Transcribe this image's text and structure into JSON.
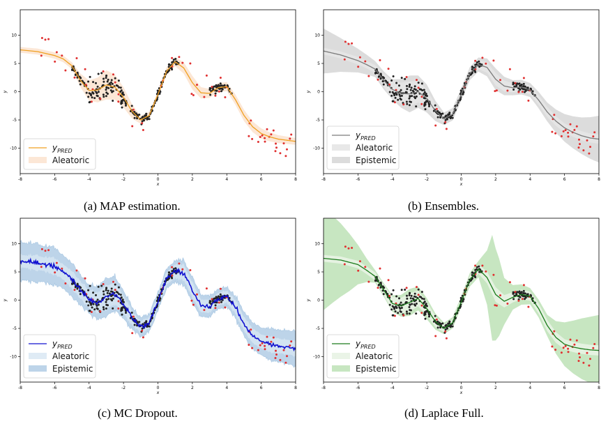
{
  "captions": [
    "(a) MAP estimation.",
    "(b) Ensembles.",
    "(c) MC Dropout.",
    "(d) Laplace Full."
  ],
  "chart_data": [
    {
      "type": "line",
      "title": "",
      "caption": "(a) MAP estimation.",
      "xlabel": "x",
      "ylabel": "y",
      "xlim": [
        -8,
        8
      ],
      "ylim": [
        -14.5,
        14.5
      ],
      "xticks": [
        -8,
        -6,
        -4,
        -2,
        0,
        2,
        4,
        6,
        8
      ],
      "yticks": [
        -10,
        -5,
        0,
        5,
        10
      ],
      "legend": {
        "position": "lower-left",
        "entries": [
          "y_PRED",
          "Aleatoric"
        ],
        "style": [
          "line",
          "band"
        ]
      },
      "colors": {
        "mean": "#f0a020",
        "aleatoric": "#fbe3cf",
        "aleatoric_alpha": 0.85,
        "epistemic": ""
      },
      "series": [
        {
          "name": "y_PRED",
          "x": [
            -8,
            -7,
            -6,
            -5.5,
            -5,
            -4.5,
            -4,
            -3.5,
            -3,
            -2.5,
            -2,
            -1.5,
            -1,
            -0.5,
            0,
            0.5,
            1,
            1.5,
            2,
            2.5,
            3,
            3.5,
            4,
            4.5,
            5,
            5.5,
            6,
            6.5,
            7,
            7.5,
            8
          ],
          "y": [
            7.4,
            7.1,
            6.4,
            5.8,
            4.6,
            2.0,
            0.2,
            0.3,
            1.2,
            0.8,
            -1.0,
            -3.5,
            -5.0,
            -4.2,
            -0.5,
            3.6,
            5.3,
            4.2,
            1.6,
            -0.2,
            -0.3,
            0.7,
            0.9,
            -1.4,
            -4.2,
            -6.2,
            -7.4,
            -8.0,
            -8.4,
            -8.6,
            -8.8
          ]
        }
      ],
      "aleatoric_halfwidth": {
        "x": [
          -8,
          -5,
          -4,
          -3,
          -2,
          -1,
          0,
          1,
          2,
          3,
          4,
          5,
          6,
          7,
          8
        ],
        "w": [
          0.5,
          0.6,
          1.8,
          2.6,
          1.8,
          0.7,
          0.6,
          0.8,
          1.2,
          0.8,
          0.8,
          1.0,
          0.9,
          0.7,
          0.6
        ]
      }
    },
    {
      "type": "line",
      "title": "",
      "caption": "(b) Ensembles.",
      "xlabel": "x",
      "ylabel": "y",
      "xlim": [
        -8,
        8
      ],
      "ylim": [
        -14.5,
        14.5
      ],
      "xticks": [
        -8,
        -6,
        -4,
        -2,
        0,
        2,
        4,
        6,
        8
      ],
      "yticks": [
        -10,
        -5,
        0,
        5,
        10
      ],
      "legend": {
        "position": "lower-left",
        "entries": [
          "y_PRED",
          "Aleatoric",
          "Epistemic"
        ],
        "style": [
          "line",
          "band",
          "band"
        ]
      },
      "colors": {
        "mean": "#7a7a7a",
        "aleatoric": "#e6e6e6",
        "aleatoric_alpha": 0.9,
        "epistemic": "#c9c9c9",
        "epistemic_alpha": 0.65
      },
      "series": [
        {
          "name": "y_PRED",
          "x": [
            -8,
            -7,
            -6,
            -5.5,
            -5,
            -4.5,
            -4,
            -3.5,
            -3,
            -2.5,
            -2,
            -1.5,
            -1,
            -0.5,
            0,
            0.5,
            1,
            1.5,
            2,
            2.5,
            3,
            3.5,
            4,
            4.5,
            5,
            5.5,
            6,
            6.5,
            7,
            7.5,
            8
          ],
          "y": [
            7.2,
            6.5,
            5.5,
            4.8,
            4.0,
            2.0,
            0.4,
            -0.3,
            -0.4,
            0.0,
            -1.2,
            -3.4,
            -4.8,
            -4.0,
            -0.5,
            3.2,
            4.8,
            4.3,
            2.2,
            1.0,
            0.7,
            0.8,
            0.3,
            -1.5,
            -3.6,
            -5.2,
            -6.4,
            -7.2,
            -7.8,
            -8.2,
            -8.4
          ]
        }
      ],
      "aleatoric_halfwidth": {
        "x": [
          -8,
          -5,
          -4,
          -3,
          -2,
          -1,
          0,
          1,
          2,
          3,
          4,
          5,
          6,
          7,
          8
        ],
        "w": [
          0.6,
          0.7,
          1.6,
          2.2,
          1.6,
          0.7,
          0.6,
          0.8,
          1.1,
          0.8,
          0.8,
          0.9,
          0.8,
          0.8,
          0.8
        ]
      },
      "epistemic_halfwidth": {
        "x": [
          -8,
          -7,
          -6,
          -5,
          -4,
          -3,
          -2,
          -1,
          0,
          1,
          2,
          3,
          4,
          5,
          6,
          7,
          8
        ],
        "w": [
          3.8,
          2.8,
          1.9,
          1.2,
          1.3,
          2.6,
          2.0,
          0.9,
          0.9,
          1.0,
          1.6,
          1.1,
          1.0,
          1.4,
          2.2,
          3.0,
          3.9
        ]
      }
    },
    {
      "type": "line",
      "title": "",
      "caption": "(c) MC Dropout.",
      "xlabel": "x",
      "ylabel": "y",
      "xlim": [
        -8,
        8
      ],
      "ylim": [
        -14.5,
        14.5
      ],
      "xticks": [
        -8,
        -6,
        -4,
        -2,
        0,
        2,
        4,
        6,
        8
      ],
      "yticks": [
        -10,
        -5,
        0,
        5,
        10
      ],
      "legend": {
        "position": "lower-left",
        "entries": [
          "y_PRED",
          "Aleatoric",
          "Epistemic"
        ],
        "style": [
          "line",
          "band",
          "band"
        ]
      },
      "noisy": true,
      "colors": {
        "mean": "#1010d0",
        "aleatoric": "#d7e6f3",
        "aleatoric_alpha": 0.8,
        "epistemic": "#a7c6e2",
        "epistemic_alpha": 0.75
      },
      "series": [
        {
          "name": "y_PRED",
          "x": [
            -8,
            -7,
            -6,
            -5.5,
            -5,
            -4.5,
            -4,
            -3.5,
            -3,
            -2.5,
            -2,
            -1.5,
            -1,
            -0.5,
            0,
            0.5,
            1,
            1.5,
            2,
            2.5,
            3,
            3.5,
            4,
            4.5,
            5,
            5.5,
            6,
            6.5,
            7,
            7.5,
            8
          ],
          "y": [
            6.9,
            6.6,
            6.0,
            5.0,
            3.6,
            1.8,
            0.2,
            -0.5,
            0.5,
            1.2,
            -0.8,
            -3.2,
            -4.8,
            -4.0,
            -0.2,
            3.8,
            5.1,
            4.9,
            1.8,
            -1.0,
            -1.1,
            0.2,
            0.6,
            -1.2,
            -4.2,
            -6.3,
            -7.3,
            -7.8,
            -8.1,
            -8.3,
            -8.6
          ]
        }
      ],
      "aleatoric_halfwidth": {
        "x": [
          -8,
          -4,
          -3,
          -2,
          -1,
          0,
          1,
          2,
          3,
          4,
          5,
          6,
          7,
          8
        ],
        "w": [
          1.0,
          1.4,
          2.0,
          1.4,
          0.8,
          0.8,
          1.0,
          1.2,
          0.9,
          0.9,
          1.1,
          1.2,
          1.2,
          1.2
        ]
      },
      "epistemic_halfwidth": {
        "x": [
          -8,
          -6,
          -4,
          -3,
          -2,
          -1,
          0,
          1,
          2,
          3,
          4,
          5,
          6,
          7,
          8
        ],
        "w": [
          2.9,
          2.6,
          1.8,
          2.6,
          1.8,
          1.1,
          1.1,
          1.3,
          1.7,
          1.3,
          1.2,
          1.6,
          2.0,
          2.3,
          2.6
        ]
      }
    },
    {
      "type": "line",
      "title": "",
      "caption": "(d) Laplace Full.",
      "xlabel": "x",
      "ylabel": "y",
      "xlim": [
        -8,
        8
      ],
      "ylim": [
        -14.5,
        14.5
      ],
      "xticks": [
        -8,
        -6,
        -4,
        -2,
        0,
        2,
        4,
        6,
        8
      ],
      "yticks": [
        -10,
        -5,
        0,
        5,
        10
      ],
      "legend": {
        "position": "lower-left",
        "entries": [
          "y_PRED",
          "Aleatoric",
          "Epistemic"
        ],
        "style": [
          "line",
          "band",
          "band"
        ]
      },
      "colors": {
        "mean": "#1a7a1a",
        "aleatoric": "#e8f3e4",
        "aleatoric_alpha": 0.9,
        "epistemic": "#a9d8a0",
        "epistemic_alpha": 0.65
      },
      "series": [
        {
          "name": "y_PRED",
          "x": [
            -8,
            -7,
            -6,
            -5.5,
            -5,
            -4.5,
            -4,
            -3.5,
            -3,
            -2.5,
            -2,
            -1.5,
            -1,
            -0.5,
            0,
            0.5,
            1,
            1.5,
            2,
            2.5,
            3,
            3.5,
            4,
            4.5,
            5,
            5.5,
            6,
            6.5,
            7,
            7.5,
            8
          ],
          "y": [
            7.4,
            7.1,
            6.3,
            5.3,
            4.2,
            1.8,
            -0.6,
            -1.0,
            -0.4,
            0.3,
            -1.5,
            -3.8,
            -5.0,
            -4.0,
            -0.3,
            3.6,
            5.5,
            4.0,
            1.0,
            -0.2,
            0.5,
            1.0,
            0.7,
            -1.5,
            -4.5,
            -6.6,
            -7.8,
            -8.3,
            -8.6,
            -8.8,
            -8.9
          ]
        }
      ],
      "aleatoric_halfwidth": {
        "x": [
          -8,
          -5,
          -4,
          -3,
          -2,
          -1,
          0,
          1,
          2,
          3,
          4,
          5,
          6,
          7,
          8
        ],
        "w": [
          0.6,
          0.7,
          1.2,
          1.6,
          1.2,
          0.7,
          0.6,
          0.8,
          1.3,
          0.9,
          0.8,
          1.0,
          0.9,
          0.9,
          0.9
        ]
      },
      "epistemic_halfwidth": {
        "x": [
          -8,
          -7.5,
          -7,
          -6.5,
          -6,
          -5.5,
          -5,
          -4.5,
          -4,
          -3,
          -2,
          -1,
          0,
          1,
          1.5,
          1.8,
          2.2,
          2.5,
          3,
          4,
          4.5,
          5,
          5.5,
          6,
          6.5,
          7,
          7.5,
          8
        ],
        "w": [
          9.0,
          7.6,
          6.3,
          4.9,
          3.3,
          1.9,
          0.9,
          0.9,
          1.1,
          1.9,
          1.5,
          0.8,
          0.8,
          1.2,
          4.5,
          9.0,
          6.5,
          3.8,
          1.9,
          1.2,
          1.3,
          1.6,
          2.6,
          3.6,
          4.4,
          5.1,
          5.6,
          6.0
        ]
      }
    }
  ]
}
